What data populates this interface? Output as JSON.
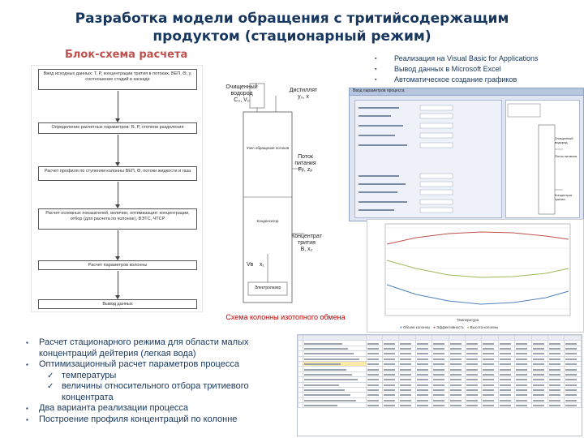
{
  "slide": {
    "title": "Разработка модели обращения с тритийсодержащим продуктом (стационарный режим)",
    "subtitle": "Блок-схема расчета",
    "top_bullets": [
      "Реализация на Visual Basic for Applications",
      "Вывод данных в Microsoft Excel",
      "Автоматическое создание графиков"
    ],
    "column_caption": "Схема колонны изотопного обмена",
    "bottom_bullets": {
      "b1": "Расчет стационарного режима для области малых концентраций дейтерия (легкая вода)",
      "b2": "Оптимизационный расчет параметров процесса",
      "b2_sub1": "температуры",
      "b2_sub2": "величины относительного отбора тритиевого концентрата",
      "b3": "Два варианта реализации процесса",
      "b4": "Построение профиля концентраций по колонне"
    }
  },
  "flowchart": {
    "steps": [
      "Ввод исходных данных: T, P, концентрации трития в потоках, ВЕП, Θ, у, соотношение стадий в каскаде",
      "Определение расчетных параметров: R, P, степени разделения",
      "Расчет профиля по ступеням колонны ВЕП, Θ, потоки жидкости и газа",
      "Расчет основных показателей, величин, оптимизация: концентрации, отбор (для расчета по колонне), ВЭТС, ЧТСР",
      "Расчет параметров колонны",
      "Вывод данных"
    ]
  },
  "column_schema": {
    "label_feed_h2": "Очищенный водород",
    "label_feed_c": "C₀, V₀",
    "label_distillate": "Дистиллят",
    "label_distillate_c": "y₀, x",
    "label_upper_unit": "Узел обращения потоков",
    "label_tritium_flow": "Поток питания",
    "label_tritium_flow2": "Fₚ, zₚ",
    "label_lower_unit": "Конденсатор",
    "label_concentrate": "Концентрат трития",
    "label_concentrate_c": "B, x₂",
    "label_bottom_left": "Vв",
    "label_bottom_x": "x₁",
    "label_electrolyzer": "Электролизер"
  },
  "dialog": {
    "title": "Ввод параметров процесса",
    "right_labels": [
      "Очищенный водород",
      "Поток питания",
      "Концентрат трития"
    ]
  },
  "plot": {
    "xlabel": "Температура",
    "legend": [
      "Объем колонны",
      "Эффективность",
      "Высота колонны"
    ],
    "colors": [
      "#4f81bd",
      "#c0504d",
      "#9bbb59"
    ]
  },
  "sheet": {
    "rows": 14
  }
}
